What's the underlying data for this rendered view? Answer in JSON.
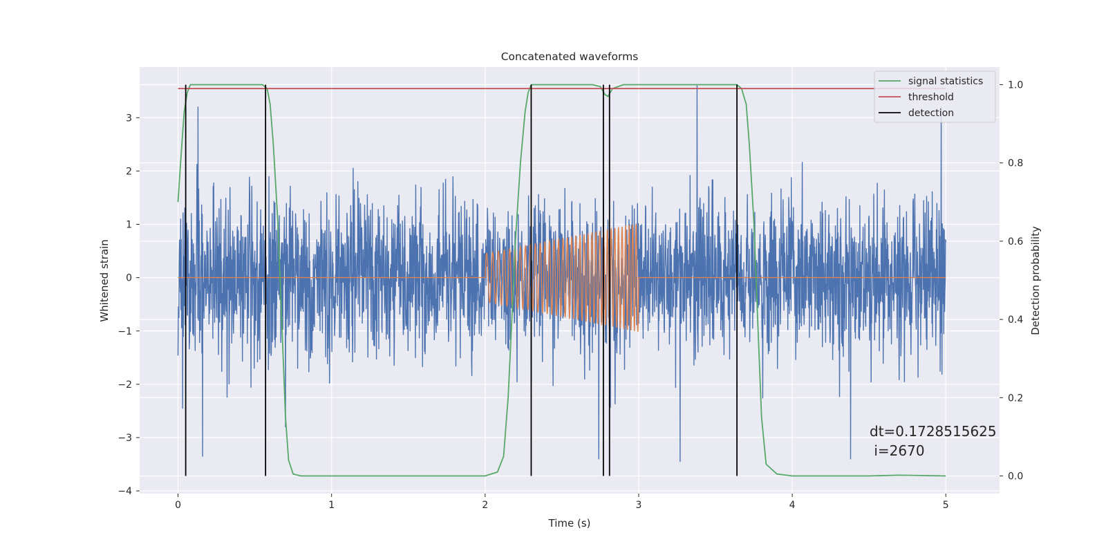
{
  "chart_data": {
    "type": "line",
    "title": "Concatenated waveforms",
    "xlabel": "Time (s)",
    "ylabel": "Whitened strain",
    "ylabel_right": "Detection probability",
    "xlim": [
      -0.25,
      5.35
    ],
    "ylim": [
      -4.05,
      3.95
    ],
    "ylim_right": [
      -0.045,
      1.045
    ],
    "xticks": [
      0,
      1,
      2,
      3,
      4,
      5
    ],
    "xtick_labels": [
      "0",
      "1",
      "2",
      "3",
      "4",
      "5"
    ],
    "yticks": [
      -4,
      -3,
      -2,
      -1,
      0,
      1,
      2,
      3
    ],
    "ytick_labels": [
      "−4",
      "−3",
      "−2",
      "−1",
      "0",
      "1",
      "2",
      "3"
    ],
    "yticks_right": [
      0.0,
      0.2,
      0.4,
      0.6,
      0.8,
      1.0
    ],
    "ytick_labels_right": [
      "0.0",
      "0.2",
      "0.4",
      "0.6",
      "0.8",
      "1.0"
    ],
    "grid": true,
    "legend_position": "top-right",
    "colors": {
      "background": "#eaeaf2",
      "grid": "#ffffff",
      "strain": "#4c72b0",
      "injection": "#dd8452",
      "signal_statistics": "#55a868",
      "threshold": "#c44e52",
      "detection": "#000000"
    },
    "series": [
      {
        "name": "strain",
        "axis": "left",
        "description_x_range": [
          0,
          5
        ],
        "typical_envelope": [
          -2.0,
          2.2
        ],
        "notable_peaks": [
          {
            "x": 0.03,
            "y": -2.45
          },
          {
            "x": 0.13,
            "y": 3.2
          },
          {
            "x": 0.16,
            "y": -3.35
          },
          {
            "x": 0.7,
            "y": -2.8
          },
          {
            "x": 2.74,
            "y": -3.4
          },
          {
            "x": 3.27,
            "y": -3.45
          },
          {
            "x": 3.38,
            "y": 3.6
          },
          {
            "x": 4.38,
            "y": -3.4
          },
          {
            "x": 4.97,
            "y": 3.2
          }
        ]
      },
      {
        "name": "injection",
        "axis": "left",
        "start_x": 2.0,
        "end_x": 3.0,
        "start_amplitude": 0.45,
        "end_amplitude": 1.02,
        "start_frequency_hz": 25,
        "end_frequency_hz": 45
      },
      {
        "name": "signal statistics",
        "axis": "right",
        "x": [
          0.0,
          0.02,
          0.04,
          0.06,
          0.08,
          0.1,
          0.15,
          0.3,
          0.5,
          0.55,
          0.58,
          0.6,
          0.62,
          0.65,
          0.68,
          0.7,
          0.72,
          0.75,
          0.8,
          1.0,
          1.5,
          2.0,
          2.08,
          2.12,
          2.15,
          2.18,
          2.2,
          2.23,
          2.26,
          2.28,
          2.3,
          2.33,
          2.4,
          2.7,
          2.75,
          2.78,
          2.8,
          2.83,
          2.9,
          3.2,
          3.6,
          3.64,
          3.67,
          3.7,
          3.72,
          3.75,
          3.78,
          3.8,
          3.83,
          3.9,
          4.0,
          4.5,
          4.7,
          5.0
        ],
        "y": [
          0.7,
          0.82,
          0.93,
          0.98,
          1.0,
          1.0,
          1.0,
          1.0,
          1.0,
          1.0,
          0.99,
          0.95,
          0.85,
          0.65,
          0.35,
          0.15,
          0.04,
          0.005,
          0.0,
          0.0,
          0.0,
          0.0,
          0.01,
          0.05,
          0.2,
          0.45,
          0.62,
          0.8,
          0.93,
          0.98,
          1.0,
          1.0,
          1.0,
          1.0,
          0.995,
          0.975,
          0.97,
          0.99,
          1.0,
          1.0,
          1.0,
          1.0,
          0.99,
          0.95,
          0.85,
          0.65,
          0.35,
          0.15,
          0.03,
          0.005,
          0.0,
          0.0,
          0.002,
          0.0
        ]
      },
      {
        "name": "threshold",
        "axis": "right",
        "x": [
          0,
          5
        ],
        "y": [
          0.99,
          0.99
        ]
      },
      {
        "name": "detection",
        "axis": "right",
        "x_positions": [
          0.05,
          0.57,
          2.3,
          2.77,
          2.81,
          3.64
        ],
        "y_range": [
          0.0,
          1.0
        ]
      }
    ],
    "legend": [
      "signal statistics",
      "threshold",
      "detection"
    ],
    "annotation": {
      "line1": "dt=0.1728515625",
      "line2": " i=2670"
    }
  }
}
